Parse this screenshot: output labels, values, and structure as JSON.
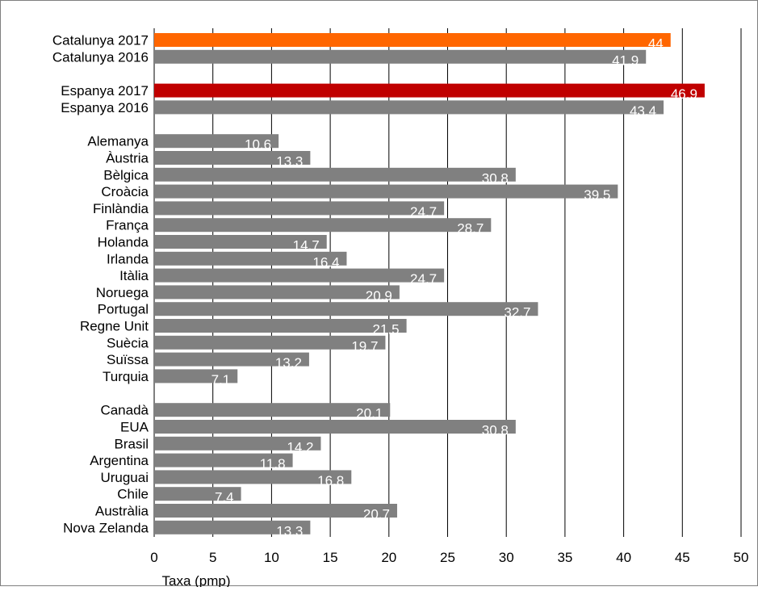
{
  "chart_data": {
    "type": "bar",
    "orientation": "horizontal",
    "xlabel": "Taxa (pmp)",
    "xlim": [
      0,
      50
    ],
    "xticks": [
      "0",
      "5",
      "10",
      "15",
      "20",
      "25",
      "30",
      "35",
      "40",
      "45",
      "50"
    ],
    "grid": "vertical",
    "legend": "none",
    "colors": {
      "catalunya_2017": "#ff6600",
      "espanya_2017": "#c00000",
      "default": "#808080",
      "grid": "#000000",
      "label_text": "#ffffff"
    },
    "groups": [
      {
        "items": [
          {
            "label": "Catalunya 2017",
            "value": 44,
            "value_label": "44",
            "color": "#ff6600"
          },
          {
            "label": "Catalunya 2016",
            "value": 41.9,
            "value_label": "41.9",
            "color": "#808080"
          }
        ]
      },
      {
        "items": [
          {
            "label": "Espanya 2017",
            "value": 46.9,
            "value_label": "46.9",
            "color": "#c00000"
          },
          {
            "label": "Espanya 2016",
            "value": 43.4,
            "value_label": "43.4",
            "color": "#808080"
          }
        ]
      },
      {
        "items": [
          {
            "label": "Alemanya",
            "value": 10.6,
            "value_label": "10.6",
            "color": "#808080"
          },
          {
            "label": "Àustria",
            "value": 13.3,
            "value_label": "13.3",
            "color": "#808080"
          },
          {
            "label": "Bèlgica",
            "value": 30.8,
            "value_label": "30.8",
            "color": "#808080"
          },
          {
            "label": "Croàcia",
            "value": 39.5,
            "value_label": "39.5",
            "color": "#808080"
          },
          {
            "label": "Finlàndia",
            "value": 24.7,
            "value_label": "24.7",
            "color": "#808080"
          },
          {
            "label": "França",
            "value": 28.7,
            "value_label": "28.7",
            "color": "#808080"
          },
          {
            "label": "Holanda",
            "value": 14.7,
            "value_label": "14.7",
            "color": "#808080"
          },
          {
            "label": "Irlanda",
            "value": 16.4,
            "value_label": "16.4",
            "color": "#808080"
          },
          {
            "label": "Itàlia",
            "value": 24.7,
            "value_label": "24.7",
            "color": "#808080"
          },
          {
            "label": "Noruega",
            "value": 20.9,
            "value_label": "20.9",
            "color": "#808080"
          },
          {
            "label": "Portugal",
            "value": 32.7,
            "value_label": "32.7",
            "color": "#808080"
          },
          {
            "label": "Regne Unit",
            "value": 21.5,
            "value_label": "21.5",
            "color": "#808080"
          },
          {
            "label": "Suècia",
            "value": 19.7,
            "value_label": "19.7",
            "color": "#808080"
          },
          {
            "label": "Suïssa",
            "value": 13.2,
            "value_label": "13.2",
            "color": "#808080"
          },
          {
            "label": "Turquia",
            "value": 7.1,
            "value_label": "7.1",
            "color": "#808080"
          }
        ]
      },
      {
        "items": [
          {
            "label": "Canadà",
            "value": 20.1,
            "value_label": "20.1",
            "color": "#808080"
          },
          {
            "label": "EUA",
            "value": 30.8,
            "value_label": "30.8",
            "color": "#808080"
          },
          {
            "label": "Brasil",
            "value": 14.2,
            "value_label": "14.2",
            "color": "#808080"
          },
          {
            "label": "Argentina",
            "value": 11.8,
            "value_label": "11.8",
            "color": "#808080"
          },
          {
            "label": "Uruguai",
            "value": 16.8,
            "value_label": "16.8",
            "color": "#808080"
          },
          {
            "label": "Chile",
            "value": 7.4,
            "value_label": "7.4",
            "color": "#808080"
          },
          {
            "label": "Austràlia",
            "value": 20.7,
            "value_label": "20.7",
            "color": "#808080"
          },
          {
            "label": "Nova Zelanda",
            "value": 13.3,
            "value_label": "13.3",
            "color": "#808080"
          }
        ]
      }
    ]
  }
}
